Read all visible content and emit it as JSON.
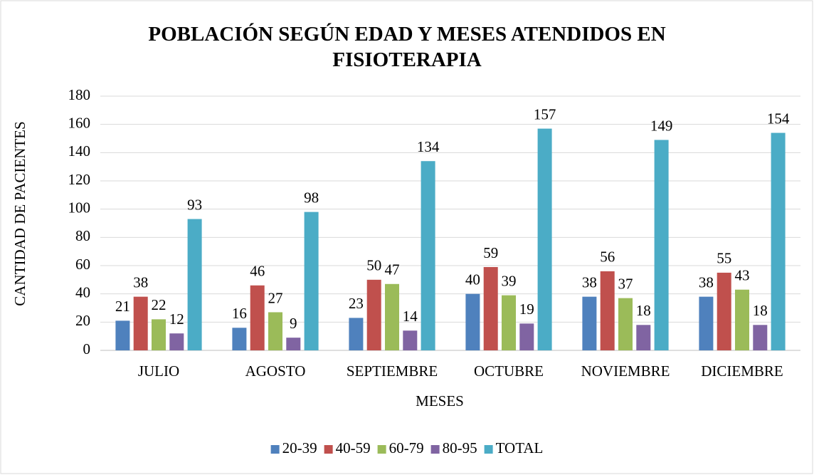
{
  "chart_data": {
    "type": "bar",
    "title": "POBLACIÓN SEGÚN EDAD Y MESES ATENDIDOS EN FISIOTERAPIA",
    "x_label": "MESES",
    "y_label": "CANTIDAD DE PACIENTES",
    "categories": [
      "JULIO",
      "AGOSTO",
      "SEPTIEMBRE",
      "OCTUBRE",
      "NOVIEMBRE",
      "DICIEMBRE"
    ],
    "series": [
      {
        "name": "20-39",
        "color": "#4f81bd",
        "values": [
          21,
          16,
          23,
          40,
          38,
          38
        ]
      },
      {
        "name": "40-59",
        "color": "#c0504d",
        "values": [
          38,
          46,
          50,
          59,
          56,
          55
        ]
      },
      {
        "name": "60-79",
        "color": "#9bbb59",
        "values": [
          22,
          27,
          47,
          39,
          37,
          43
        ]
      },
      {
        "name": "80-95",
        "color": "#8064a2",
        "values": [
          12,
          9,
          14,
          19,
          18,
          18
        ]
      },
      {
        "name": "TOTAL",
        "color": "#4bacc6",
        "values": [
          93,
          98,
          134,
          157,
          149,
          154
        ]
      }
    ],
    "ylim": [
      0,
      180
    ],
    "yticks": [
      0,
      20,
      40,
      60,
      80,
      100,
      120,
      140,
      160,
      180
    ],
    "grid": true,
    "legend": "bottom"
  }
}
